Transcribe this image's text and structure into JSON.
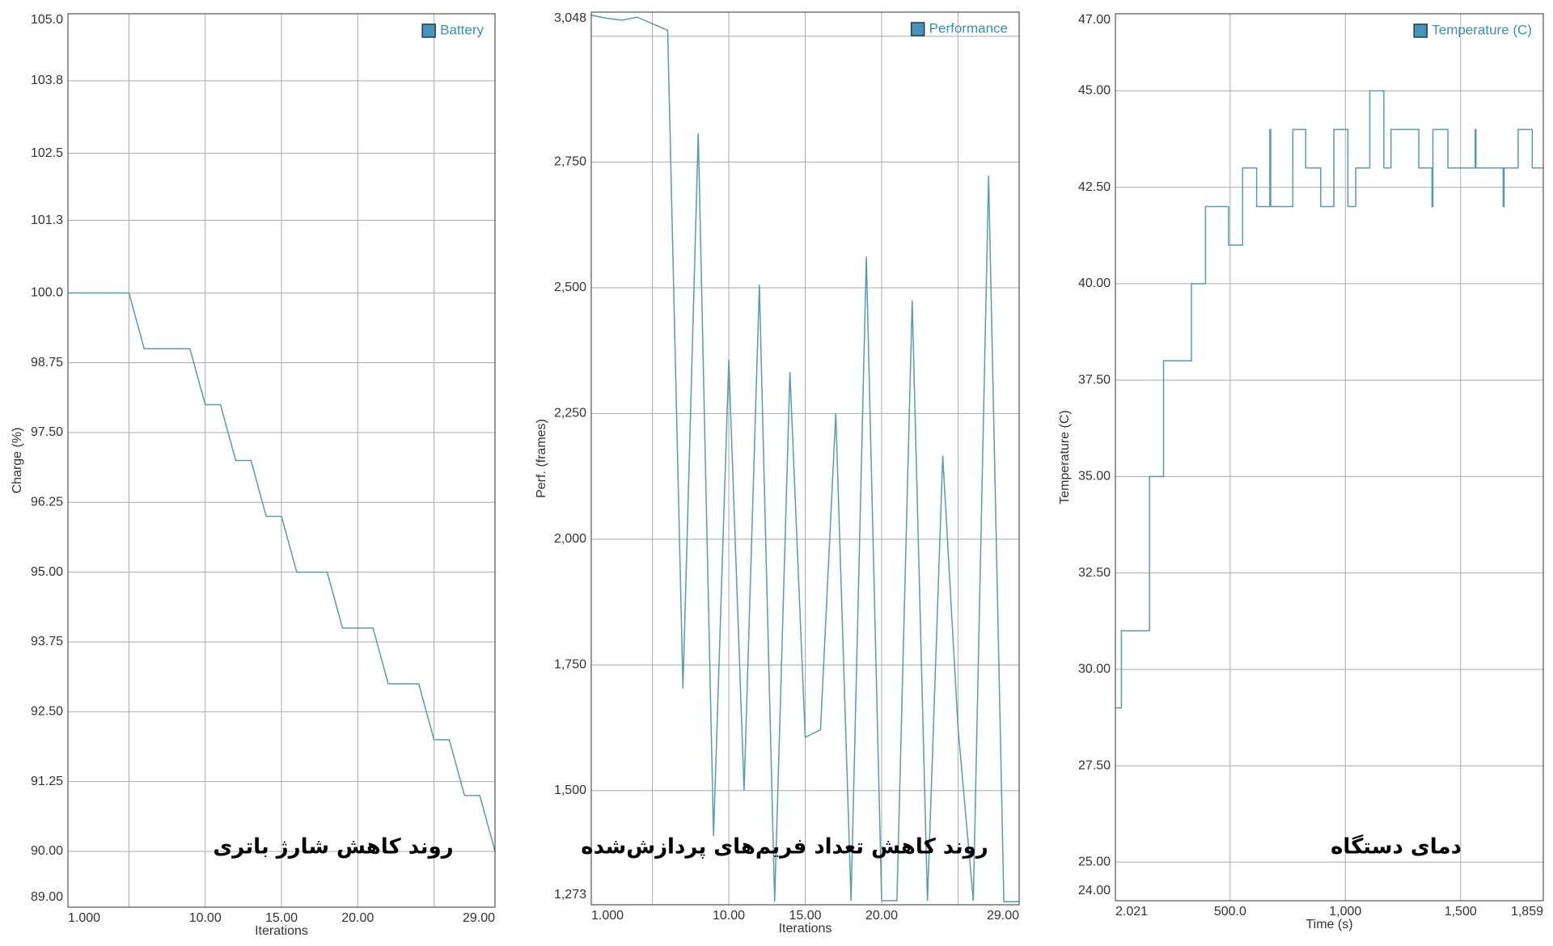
{
  "chart_data": [
    {
      "type": "line",
      "xlabel": "Iterations",
      "ylabel": "Charge (%)",
      "annotation": "روند کاهش شارژ باتری",
      "x": [
        1,
        2,
        3,
        4,
        5,
        6,
        7,
        8,
        9,
        10,
        11,
        12,
        13,
        14,
        15,
        16,
        17,
        18,
        19,
        20,
        21,
        22,
        23,
        24,
        25,
        26,
        27,
        28,
        29
      ],
      "series": [
        {
          "name": "Battery",
          "color": "#5b9aaa",
          "values": [
            100,
            100,
            100,
            100,
            100,
            99,
            99,
            99,
            99,
            98,
            98,
            97,
            97,
            96,
            96,
            95,
            95,
            95,
            94,
            94,
            94,
            93,
            93,
            93,
            92,
            92,
            91,
            91,
            90
          ]
        }
      ],
      "xlim": [
        1,
        29
      ],
      "xticks": [
        {
          "value": 1,
          "label": "1.000"
        },
        {
          "value": 10,
          "label": "10.00"
        },
        {
          "value": 15,
          "label": "15.00"
        },
        {
          "value": 20,
          "label": "20.00"
        },
        {
          "value": 29,
          "label": "29.00"
        }
      ],
      "minor_xticks": [
        5,
        25
      ],
      "ylim": [
        89,
        105
      ],
      "yticks": [
        {
          "value": 105,
          "label": "105.0"
        },
        103.8,
        102.5,
        101.3,
        {
          "value": 100,
          "label": "100.0"
        },
        98.75,
        {
          "value": 97.5,
          "label": "97.50"
        },
        96.25,
        {
          "value": 95,
          "label": "95.00"
        },
        93.75,
        {
          "value": 92.5,
          "label": "92.50"
        },
        91.25,
        {
          "value": 90,
          "label": "90.00"
        },
        {
          "value": 89,
          "label": "89.00"
        }
      ],
      "grid": true,
      "legend": "upper right"
    },
    {
      "type": "line",
      "xlabel": "Iterations",
      "ylabel": "Perf. (frames)",
      "annotation": "روند کاهش تعداد فریم‌های پردازش‌شده",
      "x": [
        1,
        2,
        3,
        4,
        5,
        6,
        7,
        8,
        9,
        10,
        11,
        12,
        13,
        14,
        15,
        16,
        17,
        18,
        19,
        20,
        21,
        22,
        23,
        24,
        25,
        26,
        27,
        28,
        29
      ],
      "series": [
        {
          "name": "Performance",
          "color": "#5b9aaa",
          "values": [
            3042,
            3036,
            3032,
            3038,
            3025,
            3012,
            1703,
            2807,
            1410,
            2357,
            1500,
            2506,
            1279,
            2332,
            1606,
            1621,
            2250,
            1281,
            2562,
            1281,
            1281,
            2475,
            1281,
            2166,
            1625,
            1281,
            2723,
            1279,
            1279
          ]
        }
      ],
      "xlim": [
        1,
        29
      ],
      "xticks": [
        {
          "value": 1,
          "label": "1.000"
        },
        {
          "value": 10,
          "label": "10.00"
        },
        {
          "value": 15,
          "label": "15.00"
        },
        {
          "value": 20,
          "label": "20.00"
        },
        {
          "value": 29,
          "label": "29.00"
        }
      ],
      "minor_xticks": [
        5,
        25
      ],
      "minor_yticks": [
        3000
      ],
      "ylim": [
        1273,
        3048
      ],
      "yticks": [
        {
          "value": 3048,
          "label": "3,048"
        },
        {
          "value": 2750,
          "label": "2,750"
        },
        {
          "value": 2500,
          "label": "2,500"
        },
        {
          "value": 2250,
          "label": "2,250"
        },
        {
          "value": 2000,
          "label": "2,000"
        },
        {
          "value": 1750,
          "label": "1,750"
        },
        {
          "value": 1500,
          "label": "1,500"
        },
        {
          "value": 1273,
          "label": "1,273"
        }
      ],
      "grid": true,
      "legend": "upper right"
    },
    {
      "type": "line",
      "step": true,
      "xlabel": "Time (s)",
      "ylabel": "Temperature (C)",
      "annotation": "دمای دستگاه",
      "x": [
        2.021,
        28,
        150,
        211,
        332,
        393,
        493,
        554,
        615,
        672,
        676,
        772,
        828,
        893,
        950,
        1011,
        1045,
        1106,
        1167,
        1198,
        1319,
        1376,
        1380,
        1445,
        1563,
        1567,
        1685,
        1689,
        1750,
        1811,
        1859
      ],
      "series": [
        {
          "name": "Temperature (C)",
          "color": "#5b9aaa",
          "values": [
            29,
            31,
            35,
            38,
            40,
            42,
            41,
            43,
            42,
            44,
            42,
            44,
            43,
            42,
            44,
            42,
            43,
            45,
            43,
            44,
            43,
            42,
            44,
            43,
            44,
            43,
            42,
            43,
            44,
            43,
            43
          ]
        }
      ],
      "xlim": [
        2.021,
        1859
      ],
      "xticks": [
        2.021,
        {
          "value": 500,
          "label": "500.0"
        },
        {
          "value": 1000,
          "label": "1,000"
        },
        {
          "value": 1500,
          "label": "1,500"
        },
        {
          "value": 1859,
          "label": "1,859"
        }
      ],
      "ylim": [
        24,
        47
      ],
      "yticks": [
        {
          "value": 47,
          "label": "47.00"
        },
        {
          "value": 45,
          "label": "45.00"
        },
        {
          "value": 42.5,
          "label": "42.50"
        },
        {
          "value": 40,
          "label": "40.00"
        },
        {
          "value": 37.5,
          "label": "37.50"
        },
        {
          "value": 35,
          "label": "35.00"
        },
        {
          "value": 32.5,
          "label": "32.50"
        },
        {
          "value": 30,
          "label": "30.00"
        },
        {
          "value": 27.5,
          "label": "27.50"
        },
        {
          "value": 25,
          "label": "25.00"
        },
        {
          "value": 24,
          "label": "24.00"
        }
      ],
      "grid": true,
      "legend": "upper right"
    }
  ]
}
